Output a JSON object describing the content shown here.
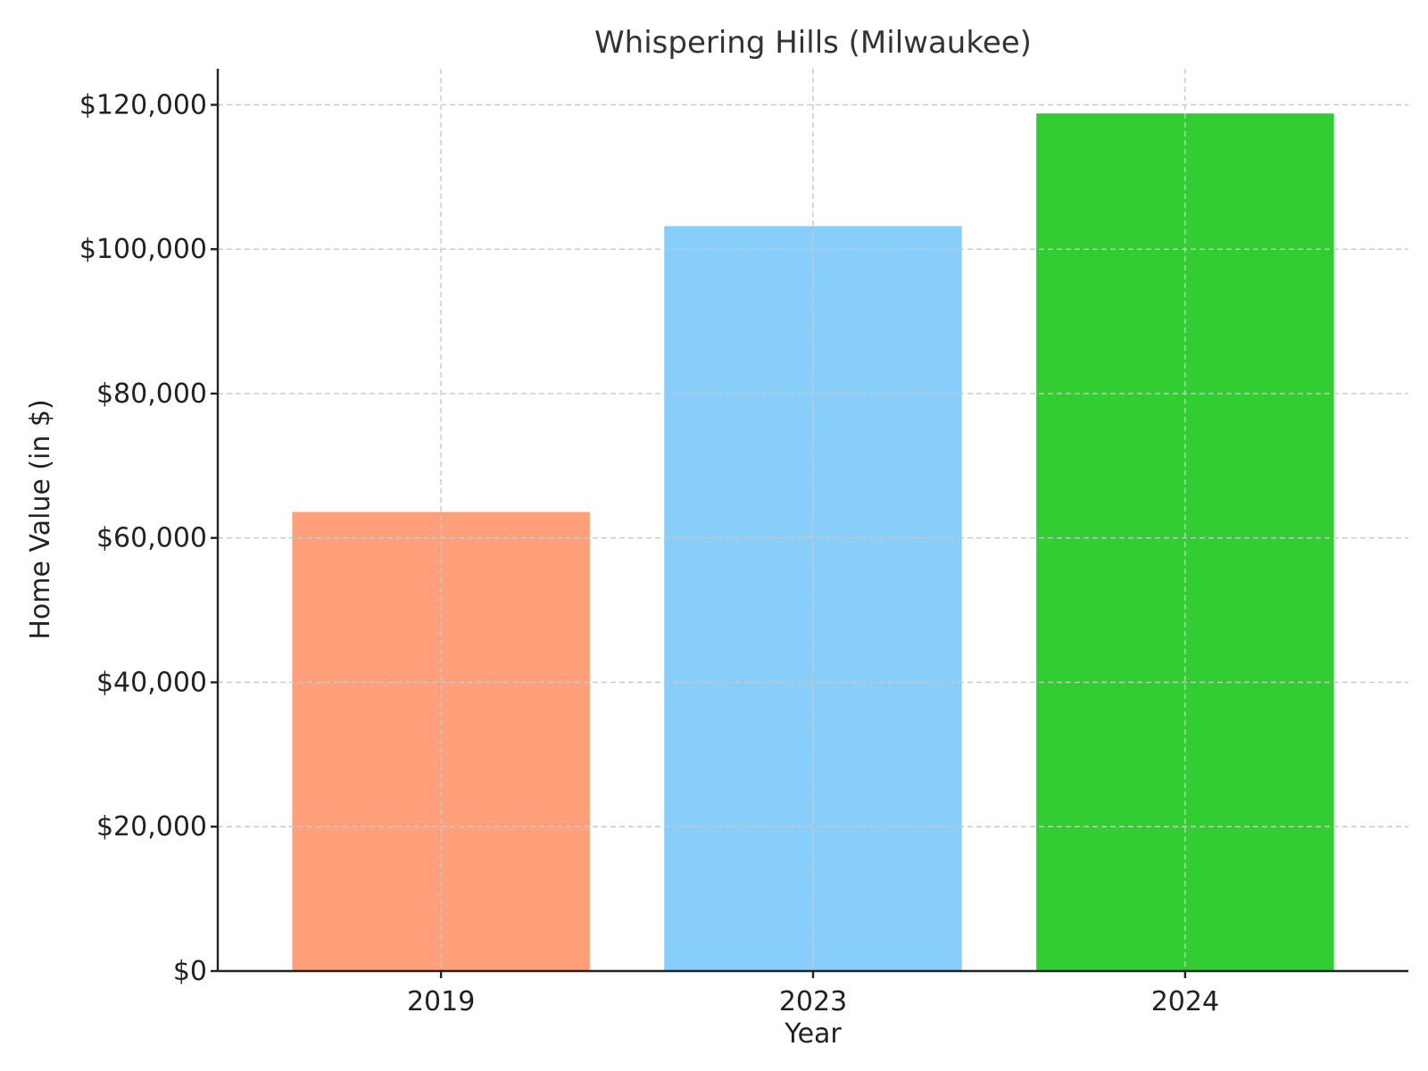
{
  "chart_data": {
    "type": "bar",
    "title": "Whispering Hills (Milwaukee)",
    "xlabel": "Year",
    "ylabel": "Home Value (in $)",
    "categories": [
      "2019",
      "2023",
      "2024"
    ],
    "values": [
      63600,
      103200,
      118800
    ],
    "colors": [
      "#FFA07A",
      "#87CEFA",
      "#32CD32"
    ],
    "ylim": [
      0,
      125000
    ],
    "yticks": [
      0,
      20000,
      40000,
      60000,
      80000,
      100000,
      120000
    ],
    "ytick_labels": [
      "$0",
      "$20,000",
      "$40,000",
      "$60,000",
      "$80,000",
      "$100,000",
      "$120,000"
    ],
    "grid": true,
    "legend": "none"
  }
}
